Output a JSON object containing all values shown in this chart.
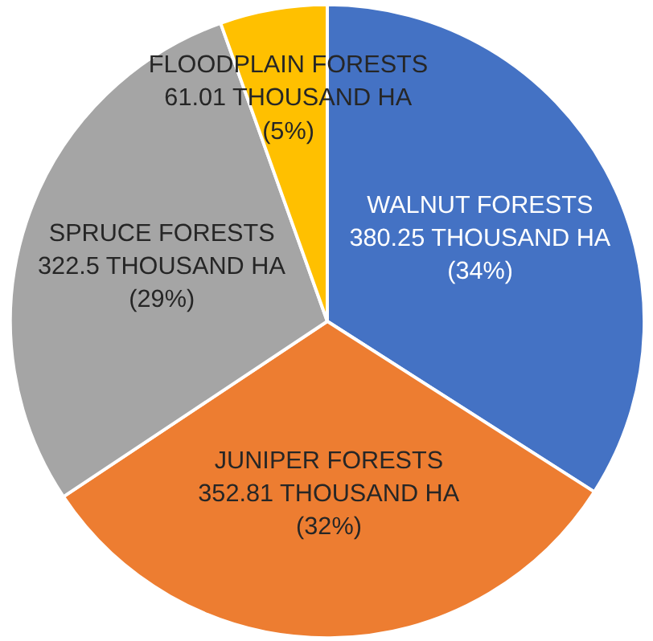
{
  "chart_data": {
    "type": "pie",
    "categories": [
      "WALNUT FORESTS",
      "JUNIPER FORESTS",
      "SPRUCE FORESTS",
      "FLOODPLAIN FORESTS"
    ],
    "values": [
      380.25,
      352.81,
      322.5,
      61.01
    ],
    "colors": [
      "#4472c4",
      "#ed7d31",
      "#a5a5a5",
      "#ffc000"
    ],
    "value_labels": [
      "380.25 THOUSAND HA\n(34%)",
      "352.81 THOUSAND HA\n(32%)",
      "322.5 THOUSAND HA\n(29%)",
      "61.01 THOUSAND HA\n(5%)"
    ]
  }
}
